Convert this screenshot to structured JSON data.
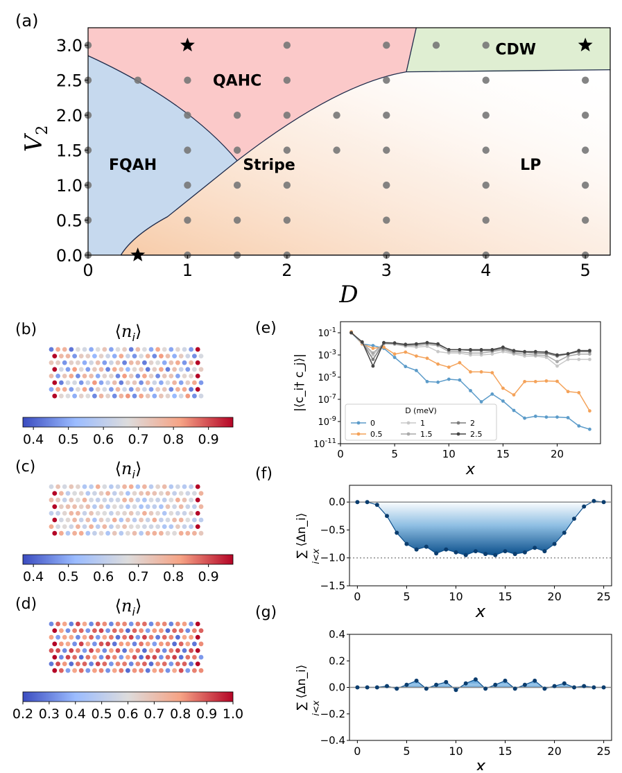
{
  "chart_data": [
    {
      "id": "a",
      "panel_label": "(a)",
      "type": "scatter",
      "title": "",
      "xlabel": "D",
      "ylabel": "V",
      "ylabel_sub": "2",
      "xlim": [
        0,
        5.25
      ],
      "ylim": [
        0,
        3.25
      ],
      "xticks": [
        0,
        1,
        2,
        3,
        4,
        5
      ],
      "yticks": [
        0.0,
        0.5,
        1.0,
        1.5,
        2.0,
        2.5,
        3.0
      ],
      "regions": [
        {
          "name": "FQAH",
          "label": "FQAH",
          "color": "#c6d9ee",
          "label_at": [
            0.45,
            1.3
          ]
        },
        {
          "name": "QAHC",
          "label": "QAHC",
          "color": "#fbc9c9",
          "label_at": [
            1.5,
            2.5
          ]
        },
        {
          "name": "CDW",
          "label": "CDW",
          "color": "#dfeed2",
          "label_at": [
            4.3,
            2.95
          ]
        },
        {
          "name": "Stripe",
          "label": "Stripe",
          "color": "#fbe0ca",
          "label_at": [
            1.82,
            1.3
          ]
        },
        {
          "name": "LP",
          "label": "LP",
          "color": "#ffffff",
          "label_at": [
            4.45,
            1.3
          ]
        }
      ],
      "points": [
        [
          0,
          0
        ],
        [
          0,
          0.5
        ],
        [
          0,
          1.0
        ],
        [
          0,
          1.5
        ],
        [
          0,
          2.0
        ],
        [
          0,
          2.5
        ],
        [
          0,
          3.0
        ],
        [
          0.5,
          2.5
        ],
        [
          1,
          0
        ],
        [
          1,
          0.5
        ],
        [
          1,
          1.0
        ],
        [
          1,
          1.5
        ],
        [
          1,
          2.0
        ],
        [
          1,
          2.5
        ],
        [
          1.5,
          0
        ],
        [
          1.5,
          0.5
        ],
        [
          1.5,
          1.0
        ],
        [
          1.5,
          1.5
        ],
        [
          1.5,
          2.0
        ],
        [
          2,
          0
        ],
        [
          2,
          0.5
        ],
        [
          2,
          1.0
        ],
        [
          2,
          1.5
        ],
        [
          2,
          2.0
        ],
        [
          2,
          2.5
        ],
        [
          2,
          3.0
        ],
        [
          2.5,
          1.5
        ],
        [
          2.5,
          2.0
        ],
        [
          3,
          0
        ],
        [
          3,
          0.5
        ],
        [
          3,
          1.0
        ],
        [
          3,
          1.5
        ],
        [
          3,
          2.0
        ],
        [
          3,
          2.5
        ],
        [
          3,
          3.0
        ],
        [
          3.5,
          3.0
        ],
        [
          4,
          0
        ],
        [
          4,
          0.5
        ],
        [
          4,
          1.0
        ],
        [
          4,
          1.5
        ],
        [
          4,
          2.0
        ],
        [
          4,
          2.5
        ],
        [
          4,
          3.0
        ],
        [
          5,
          0
        ],
        [
          5,
          0.5
        ],
        [
          5,
          1.0
        ],
        [
          5,
          1.5
        ],
        [
          5,
          2.0
        ],
        [
          5,
          2.5
        ]
      ],
      "stars": [
        [
          0.5,
          0
        ],
        [
          1,
          3.0
        ],
        [
          5,
          3.0
        ]
      ]
    },
    {
      "id": "b",
      "panel_label": "(b)",
      "type": "heatmap",
      "title": "⟨n_i⟩",
      "title_parts": [
        "⟨",
        "n",
        "i",
        "⟩"
      ],
      "cmap_range": [
        0.37,
        0.97
      ],
      "colorbar_ticks": [
        "0.4",
        "0.5",
        "0.6",
        "0.7",
        "0.8",
        "0.9"
      ],
      "colorbar_values": [
        0.4,
        0.5,
        0.6,
        0.7,
        0.8,
        0.9
      ],
      "pattern": "stripe"
    },
    {
      "id": "c",
      "panel_label": "(c)",
      "type": "heatmap",
      "title": "⟨n_i⟩",
      "title_parts": [
        "⟨",
        "n",
        "i",
        "⟩"
      ],
      "cmap_range": [
        0.37,
        0.97
      ],
      "colorbar_ticks": [
        "0.4",
        "0.5",
        "0.6",
        "0.7",
        "0.8",
        "0.9"
      ],
      "colorbar_values": [
        0.4,
        0.5,
        0.6,
        0.7,
        0.8,
        0.9
      ],
      "pattern": "weak"
    },
    {
      "id": "d",
      "panel_label": "(d)",
      "type": "heatmap",
      "title": "⟨n_i⟩",
      "title_parts": [
        "⟨",
        "n",
        "i",
        "⟩"
      ],
      "cmap_range": [
        0.2,
        1.0
      ],
      "colorbar_ticks": [
        "0.2",
        "0.3",
        "0.4",
        "0.5",
        "0.6",
        "0.7",
        "0.8",
        "0.9",
        "1.0"
      ],
      "colorbar_values": [
        0.2,
        0.3,
        0.4,
        0.5,
        0.6,
        0.7,
        0.8,
        0.9,
        1.0
      ],
      "pattern": "cdw"
    },
    {
      "id": "e",
      "panel_label": "(e)",
      "type": "line",
      "yscale": "log",
      "xlabel": "x",
      "ylabel": "|⟨c_i† c_j⟩|",
      "xlim": [
        0,
        24
      ],
      "ylim_log10": [
        -11,
        0
      ],
      "xticks": [
        0,
        5,
        10,
        15,
        20
      ],
      "yticks_exp": [
        -1,
        -3,
        -5,
        -7,
        -9,
        -11
      ],
      "legend_title": "D (meV)",
      "series": [
        {
          "name": "0",
          "color": "#5b9bc9",
          "x": [
            1,
            2,
            3,
            4,
            5,
            6,
            7,
            8,
            9,
            10,
            11,
            12,
            13,
            14,
            15,
            16,
            17,
            18,
            19,
            20,
            21,
            22,
            23
          ],
          "y": [
            0.1,
            0.01,
            0.007,
            0.004,
            0.0006,
            9e-05,
            4e-05,
            4e-06,
            3.5e-06,
            6.5e-06,
            5.5e-06,
            6e-07,
            6e-08,
            3e-07,
            7e-08,
            1e-08,
            2e-09,
            3e-09,
            2.5e-09,
            2.5e-09,
            2.2e-09,
            4e-10,
            2e-10
          ]
        },
        {
          "name": "0.5",
          "color": "#f4a259",
          "x": [
            1,
            2,
            3,
            4,
            5,
            6,
            7,
            8,
            9,
            10,
            11,
            12,
            13,
            14,
            15,
            16,
            17,
            18,
            19,
            20,
            21,
            22,
            23
          ],
          "y": [
            0.12,
            0.01,
            0.004,
            0.005,
            0.0012,
            0.0018,
            0.0008,
            0.0005,
            0.00015,
            8e-05,
            0.0002,
            3e-05,
            3e-05,
            2.5e-05,
            1e-06,
            2.5e-07,
            4e-06,
            4e-06,
            4.5e-06,
            4.2e-06,
            5e-07,
            4e-07,
            9e-09
          ]
        },
        {
          "name": "1",
          "color": "#c8c8c8",
          "x": [
            1,
            2,
            3,
            4,
            5,
            6,
            7,
            8,
            9,
            10,
            11,
            12,
            13,
            14,
            15,
            16,
            17,
            18,
            19,
            20,
            21,
            22,
            23
          ],
          "y": [
            0.1,
            0.012,
            0.001,
            0.01,
            0.009,
            0.006,
            0.005,
            0.006,
            0.002,
            0.0015,
            0.0015,
            0.001,
            0.001,
            0.0012,
            0.002,
            0.0012,
            0.0008,
            0.0008,
            0.0006,
            0.0001,
            0.0004,
            0.0004,
            0.0004
          ]
        },
        {
          "name": "1.5",
          "color": "#a9a9a9",
          "x": [
            1,
            2,
            3,
            4,
            5,
            6,
            7,
            8,
            9,
            10,
            11,
            12,
            13,
            14,
            15,
            16,
            17,
            18,
            19,
            20,
            21,
            22,
            23
          ],
          "y": [
            0.1,
            0.013,
            0.0015,
            0.011,
            0.01,
            0.007,
            0.007,
            0.009,
            0.007,
            0.002,
            0.002,
            0.0015,
            0.0015,
            0.002,
            0.003,
            0.0015,
            0.0012,
            0.001,
            0.0009,
            0.00025,
            0.0008,
            0.0012,
            0.0012
          ]
        },
        {
          "name": "2",
          "color": "#7c7c7c",
          "x": [
            1,
            2,
            3,
            4,
            5,
            6,
            7,
            8,
            9,
            10,
            11,
            12,
            13,
            14,
            15,
            16,
            17,
            18,
            19,
            20,
            21,
            22,
            23
          ],
          "y": [
            0.1,
            0.014,
            0.0004,
            0.012,
            0.011,
            0.008,
            0.009,
            0.012,
            0.009,
            0.003,
            0.003,
            0.0025,
            0.0025,
            0.0025,
            0.004,
            0.002,
            0.0018,
            0.0015,
            0.0014,
            0.0008,
            0.0012,
            0.002,
            0.002
          ]
        },
        {
          "name": "2.5",
          "color": "#444444",
          "x": [
            1,
            2,
            3,
            4,
            5,
            6,
            7,
            8,
            9,
            10,
            11,
            12,
            13,
            14,
            15,
            16,
            17,
            18,
            19,
            20,
            21,
            22,
            23
          ],
          "y": [
            0.1,
            0.015,
            0.0001,
            0.013,
            0.012,
            0.009,
            0.01,
            0.013,
            0.01,
            0.003,
            0.003,
            0.003,
            0.003,
            0.003,
            0.005,
            0.0025,
            0.002,
            0.002,
            0.0018,
            0.001,
            0.0013,
            0.0025,
            0.0025
          ]
        }
      ]
    },
    {
      "id": "f",
      "panel_label": "(f)",
      "type": "area",
      "xlabel": "x",
      "ylabel": "∑ ⟨Δn_i⟩",
      "ylabel_sub": "i<x",
      "xlim": [
        -0.8,
        25.8
      ],
      "ylim": [
        -1.5,
        0.3
      ],
      "xticks": [
        0,
        5,
        10,
        15,
        20,
        25
      ],
      "yticks": [
        0.0,
        -0.5,
        -1.0,
        -1.5
      ],
      "yticklabels": [
        "0.0",
        "−0.5",
        "−1.0",
        "−1.5"
      ],
      "reference_line": -1.0,
      "x": [
        0,
        1,
        2,
        3,
        4,
        5,
        6,
        7,
        8,
        9,
        10,
        11,
        12,
        13,
        14,
        15,
        16,
        17,
        18,
        19,
        20,
        21,
        22,
        23,
        24,
        25
      ],
      "y": [
        0,
        0,
        -0.05,
        -0.25,
        -0.55,
        -0.75,
        -0.85,
        -0.8,
        -0.92,
        -0.85,
        -0.9,
        -0.95,
        -0.88,
        -0.93,
        -0.95,
        -0.88,
        -0.93,
        -0.9,
        -0.82,
        -0.88,
        -0.75,
        -0.55,
        -0.3,
        -0.08,
        0.02,
        0
      ]
    },
    {
      "id": "g",
      "panel_label": "(g)",
      "type": "area",
      "xlabel": "x",
      "ylabel": "∑ ⟨Δn_i⟩",
      "ylabel_sub": "i<x",
      "xlim": [
        -0.8,
        25.8
      ],
      "ylim": [
        -0.4,
        0.4
      ],
      "xticks": [
        0,
        5,
        10,
        15,
        20,
        25
      ],
      "yticks": [
        0.4,
        0.2,
        0.0,
        -0.2,
        -0.4
      ],
      "yticklabels": [
        "0.4",
        "0.2",
        "0.0",
        "−0.2",
        "−0.4"
      ],
      "x": [
        0,
        1,
        2,
        3,
        4,
        5,
        6,
        7,
        8,
        9,
        10,
        11,
        12,
        13,
        14,
        15,
        16,
        17,
        18,
        19,
        20,
        21,
        22,
        23,
        24,
        25
      ],
      "y": [
        0,
        0,
        0,
        0.01,
        -0.01,
        0.02,
        0.05,
        -0.01,
        0.02,
        0.04,
        -0.02,
        0.03,
        0.06,
        -0.01,
        0.02,
        0.05,
        -0.01,
        0.02,
        0.05,
        -0.01,
        0.01,
        0.03,
        0,
        0.01,
        0,
        0
      ]
    }
  ]
}
